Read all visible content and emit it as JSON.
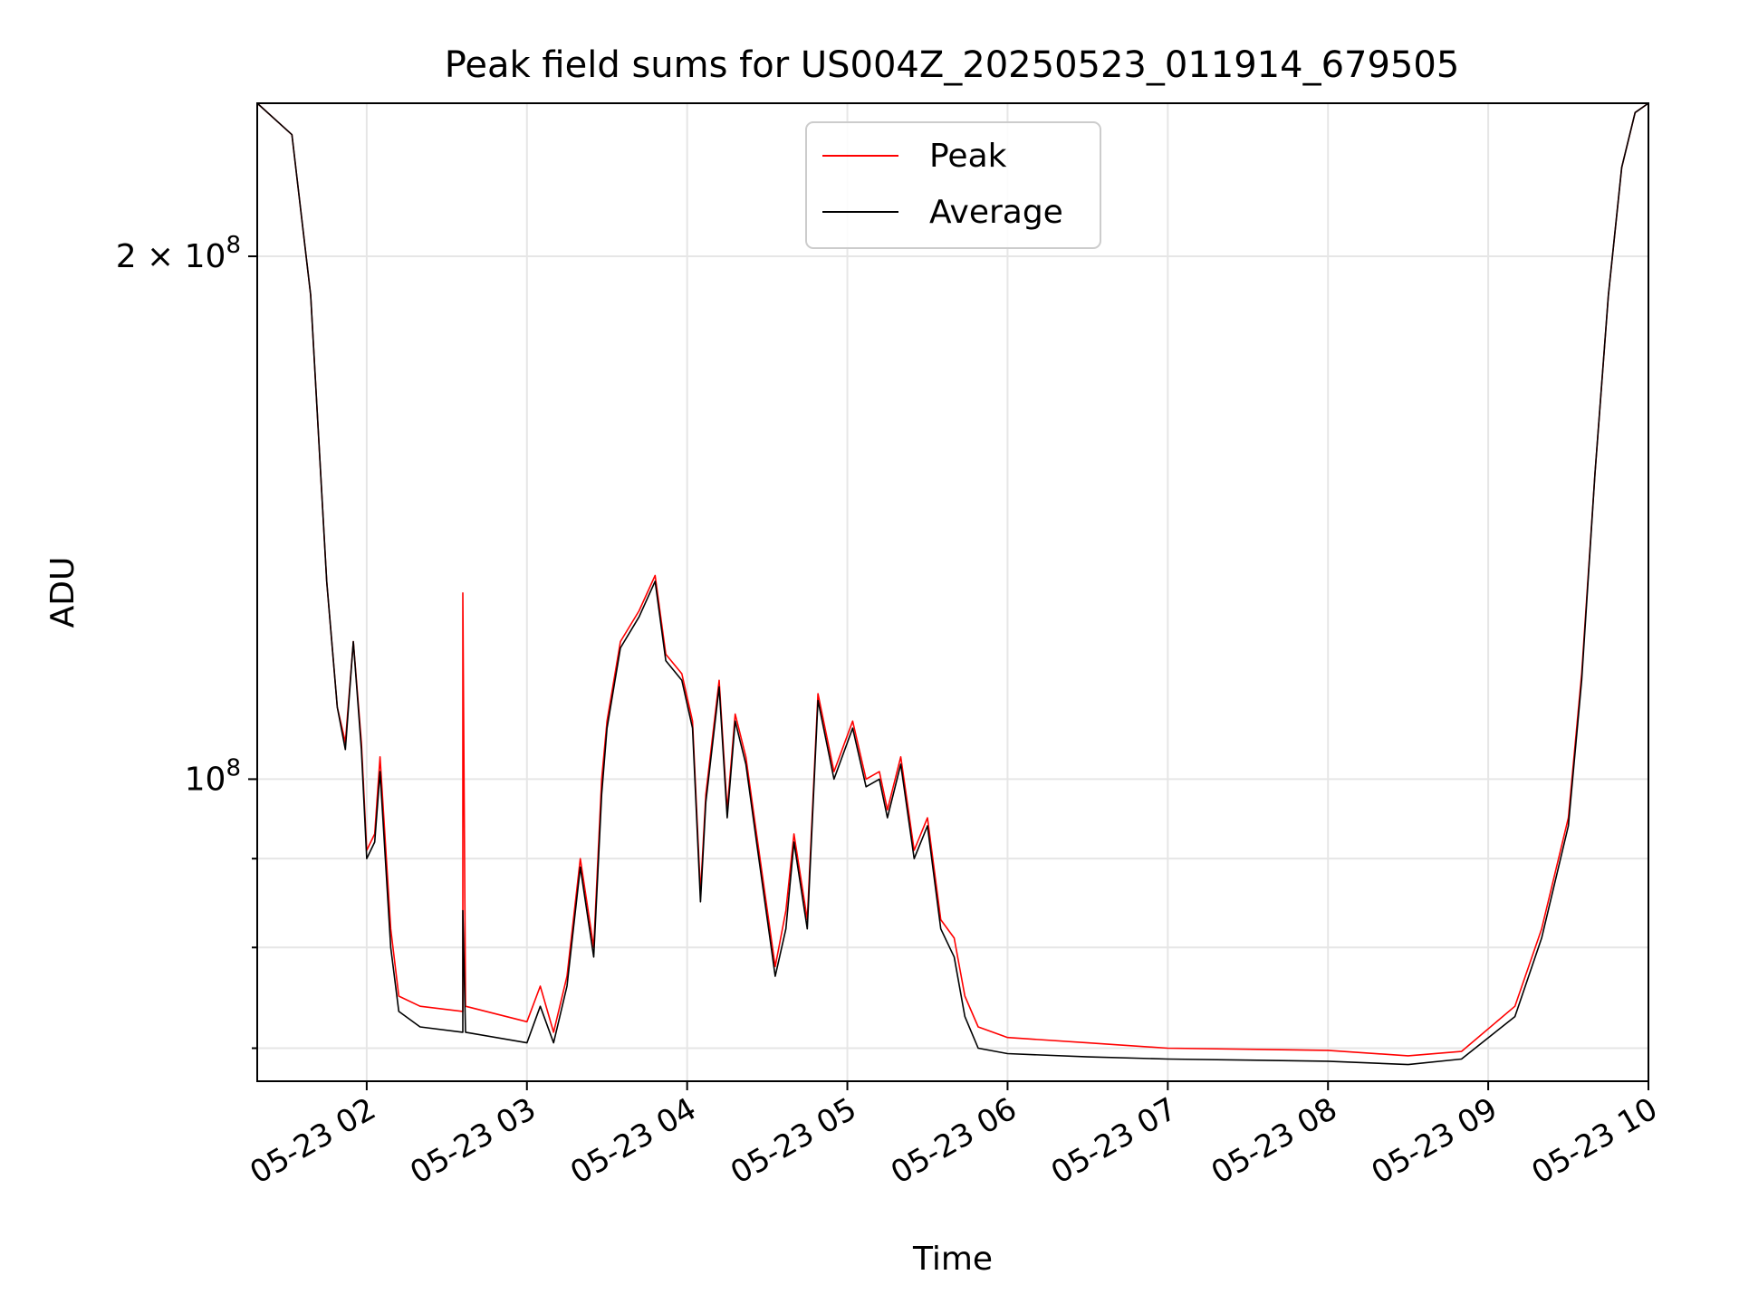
{
  "chart_data": {
    "type": "line",
    "title": "Peak field sums for US004Z_20250523_011914_679505",
    "xlabel": "Time",
    "ylabel": "ADU",
    "yscale": "log",
    "grid": true,
    "legend_position": "top-center",
    "xlim": [
      "2025-05-23 01:19",
      "2025-05-23 10:00"
    ],
    "ylim": [
      67000000,
      245000000
    ],
    "x_ticks": [
      "2025-05-23 02:00",
      "2025-05-23 03:00",
      "2025-05-23 04:00",
      "2025-05-23 05:00",
      "2025-05-23 06:00",
      "2025-05-23 07:00",
      "2025-05-23 08:00",
      "2025-05-23 09:00",
      "2025-05-23 10:00"
    ],
    "x_tick_labels": [
      "05-23 02",
      "05-23 03",
      "05-23 04",
      "05-23 05",
      "05-23 06",
      "05-23 07",
      "05-23 08",
      "05-23 09",
      "05-23 10"
    ],
    "y_major_ticks": [
      {
        "value": 100000000,
        "label_base": "10",
        "label_exp": "8",
        "label_prefix": ""
      },
      {
        "value": 200000000,
        "label_base": "10",
        "label_exp": "8",
        "label_prefix": "2 × "
      }
    ],
    "y_minor_ticks": [
      70000000,
      80000000,
      90000000
    ],
    "series": [
      {
        "name": "Peak",
        "color": "#ff0000",
        "x": [
          "2025-05-23 01:19",
          "2025-05-23 01:32",
          "2025-05-23 01:39",
          "2025-05-23 01:45",
          "2025-05-23 01:49",
          "2025-05-23 01:52",
          "2025-05-23 01:55",
          "2025-05-23 01:58",
          "2025-05-23 02:00",
          "2025-05-23 02:03",
          "2025-05-23 02:05",
          "2025-05-23 02:09",
          "2025-05-23 02:12",
          "2025-05-23 02:20",
          "2025-05-23 02:36",
          "2025-05-23 02:36",
          "2025-05-23 02:37",
          "2025-05-23 03:00",
          "2025-05-23 03:05",
          "2025-05-23 03:10",
          "2025-05-23 03:15",
          "2025-05-23 03:20",
          "2025-05-23 03:25",
          "2025-05-23 03:28",
          "2025-05-23 03:30",
          "2025-05-23 03:35",
          "2025-05-23 03:42",
          "2025-05-23 03:48",
          "2025-05-23 03:52",
          "2025-05-23 03:58",
          "2025-05-23 04:02",
          "2025-05-23 04:05",
          "2025-05-23 04:07",
          "2025-05-23 04:12",
          "2025-05-23 04:15",
          "2025-05-23 04:18",
          "2025-05-23 04:22",
          "2025-05-23 04:26",
          "2025-05-23 04:33",
          "2025-05-23 04:37",
          "2025-05-23 04:40",
          "2025-05-23 04:45",
          "2025-05-23 04:49",
          "2025-05-23 04:55",
          "2025-05-23 05:02",
          "2025-05-23 05:07",
          "2025-05-23 05:12",
          "2025-05-23 05:15",
          "2025-05-23 05:20",
          "2025-05-23 05:25",
          "2025-05-23 05:30",
          "2025-05-23 05:35",
          "2025-05-23 05:40",
          "2025-05-23 05:44",
          "2025-05-23 05:49",
          "2025-05-23 06:00",
          "2025-05-23 06:30",
          "2025-05-23 07:00",
          "2025-05-23 08:00",
          "2025-05-23 08:30",
          "2025-05-23 08:50",
          "2025-05-23 09:10",
          "2025-05-23 09:20",
          "2025-05-23 09:30",
          "2025-05-23 09:35",
          "2025-05-23 09:40",
          "2025-05-23 09:45",
          "2025-05-23 09:50",
          "2025-05-23 09:55",
          "2025-05-23 10:00"
        ],
        "y": [
          245000000,
          235000000,
          190000000,
          130000000,
          110000000,
          105000000,
          120000000,
          105000000,
          91000000,
          93000000,
          103000000,
          82000000,
          75000000,
          74000000,
          73500000,
          128000000,
          74000000,
          72500000,
          76000000,
          71500000,
          77000000,
          90000000,
          80000000,
          100000000,
          108000000,
          120000000,
          125000000,
          131000000,
          118000000,
          115000000,
          108000000,
          86000000,
          98000000,
          114000000,
          96000000,
          109000000,
          103000000,
          93000000,
          78000000,
          84000000,
          93000000,
          83000000,
          112000000,
          101000000,
          108000000,
          100000000,
          101000000,
          96000000,
          103000000,
          91000000,
          95000000,
          83000000,
          81000000,
          75000000,
          72000000,
          71000000,
          70500000,
          70000000,
          69800000,
          69300000,
          69700000,
          74000000,
          82000000,
          95000000,
          115000000,
          150000000,
          190000000,
          225000000,
          242000000,
          245000000
        ]
      },
      {
        "name": "Average",
        "color": "#000000",
        "x": [
          "2025-05-23 01:19",
          "2025-05-23 01:32",
          "2025-05-23 01:39",
          "2025-05-23 01:45",
          "2025-05-23 01:49",
          "2025-05-23 01:52",
          "2025-05-23 01:55",
          "2025-05-23 01:58",
          "2025-05-23 02:00",
          "2025-05-23 02:03",
          "2025-05-23 02:05",
          "2025-05-23 02:09",
          "2025-05-23 02:12",
          "2025-05-23 02:20",
          "2025-05-23 02:36",
          "2025-05-23 02:36",
          "2025-05-23 02:37",
          "2025-05-23 03:00",
          "2025-05-23 03:05",
          "2025-05-23 03:10",
          "2025-05-23 03:15",
          "2025-05-23 03:20",
          "2025-05-23 03:25",
          "2025-05-23 03:28",
          "2025-05-23 03:30",
          "2025-05-23 03:35",
          "2025-05-23 03:42",
          "2025-05-23 03:48",
          "2025-05-23 03:52",
          "2025-05-23 03:58",
          "2025-05-23 04:02",
          "2025-05-23 04:05",
          "2025-05-23 04:07",
          "2025-05-23 04:12",
          "2025-05-23 04:15",
          "2025-05-23 04:18",
          "2025-05-23 04:22",
          "2025-05-23 04:26",
          "2025-05-23 04:33",
          "2025-05-23 04:37",
          "2025-05-23 04:40",
          "2025-05-23 04:45",
          "2025-05-23 04:49",
          "2025-05-23 04:55",
          "2025-05-23 05:02",
          "2025-05-23 05:07",
          "2025-05-23 05:12",
          "2025-05-23 05:15",
          "2025-05-23 05:20",
          "2025-05-23 05:25",
          "2025-05-23 05:30",
          "2025-05-23 05:35",
          "2025-05-23 05:40",
          "2025-05-23 05:44",
          "2025-05-23 05:49",
          "2025-05-23 06:00",
          "2025-05-23 06:30",
          "2025-05-23 07:00",
          "2025-05-23 08:00",
          "2025-05-23 08:30",
          "2025-05-23 08:50",
          "2025-05-23 09:10",
          "2025-05-23 09:20",
          "2025-05-23 09:30",
          "2025-05-23 09:35",
          "2025-05-23 09:40",
          "2025-05-23 09:45",
          "2025-05-23 09:50",
          "2025-05-23 09:55",
          "2025-05-23 10:00"
        ],
        "y": [
          245000000,
          235000000,
          190000000,
          130000000,
          110000000,
          104000000,
          120000000,
          104000000,
          90000000,
          92000000,
          101000000,
          80000000,
          73500000,
          72000000,
          71500000,
          84000000,
          71500000,
          70500000,
          74000000,
          70500000,
          76000000,
          89000000,
          79000000,
          98000000,
          107000000,
          119000000,
          124000000,
          130000000,
          117000000,
          114000000,
          107000000,
          85000000,
          97000000,
          113000000,
          95000000,
          108000000,
          102000000,
          92000000,
          77000000,
          82000000,
          92000000,
          82000000,
          111000000,
          100000000,
          107000000,
          99000000,
          100000000,
          95000000,
          102000000,
          90000000,
          94000000,
          82000000,
          79000000,
          73000000,
          70000000,
          69500000,
          69200000,
          69000000,
          68800000,
          68500000,
          69000000,
          73000000,
          81000000,
          94000000,
          114000000,
          150000000,
          190000000,
          225000000,
          242000000,
          245000000
        ]
      }
    ]
  }
}
